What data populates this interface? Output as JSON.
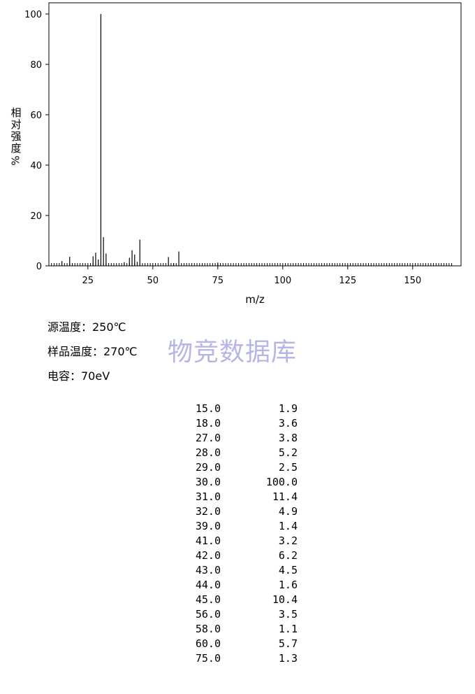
{
  "chart_data": {
    "type": "bar",
    "title": "",
    "xlabel": "m/z",
    "ylabel_chars": [
      "相",
      "对",
      "强",
      "度"
    ],
    "ylabel_unit": "%",
    "xlim": [
      10,
      165
    ],
    "ylim": [
      0,
      100
    ],
    "xticks": [
      25,
      50,
      75,
      100,
      125,
      150
    ],
    "yticks": [
      0,
      20,
      40,
      60,
      80,
      100
    ],
    "grid": false,
    "peaks": [
      {
        "mz": 15.0,
        "abundance": 1.9
      },
      {
        "mz": 18.0,
        "abundance": 3.6
      },
      {
        "mz": 27.0,
        "abundance": 3.8
      },
      {
        "mz": 28.0,
        "abundance": 5.2
      },
      {
        "mz": 29.0,
        "abundance": 2.5
      },
      {
        "mz": 30.0,
        "abundance": 100.0
      },
      {
        "mz": 31.0,
        "abundance": 11.4
      },
      {
        "mz": 32.0,
        "abundance": 4.9
      },
      {
        "mz": 39.0,
        "abundance": 1.4
      },
      {
        "mz": 41.0,
        "abundance": 3.2
      },
      {
        "mz": 42.0,
        "abundance": 6.2
      },
      {
        "mz": 43.0,
        "abundance": 4.5
      },
      {
        "mz": 44.0,
        "abundance": 1.6
      },
      {
        "mz": 45.0,
        "abundance": 10.4
      },
      {
        "mz": 56.0,
        "abundance": 3.5
      },
      {
        "mz": 58.0,
        "abundance": 1.1
      },
      {
        "mz": 60.0,
        "abundance": 5.7
      },
      {
        "mz": 75.0,
        "abundance": 1.3
      }
    ]
  },
  "conditions": {
    "source_temp": "源温度：250℃",
    "sample_temp": "样品温度：270℃",
    "energy": "电容：70eV"
  },
  "watermark": "物竞数据库",
  "table_rows": [
    {
      "mz": "15.0",
      "abundance": "1.9"
    },
    {
      "mz": "18.0",
      "abundance": "3.6"
    },
    {
      "mz": "27.0",
      "abundance": "3.8"
    },
    {
      "mz": "28.0",
      "abundance": "5.2"
    },
    {
      "mz": "29.0",
      "abundance": "2.5"
    },
    {
      "mz": "30.0",
      "abundance": "100.0"
    },
    {
      "mz": "31.0",
      "abundance": "11.4"
    },
    {
      "mz": "32.0",
      "abundance": "4.9"
    },
    {
      "mz": "39.0",
      "abundance": "1.4"
    },
    {
      "mz": "41.0",
      "abundance": "3.2"
    },
    {
      "mz": "42.0",
      "abundance": "6.2"
    },
    {
      "mz": "43.0",
      "abundance": "4.5"
    },
    {
      "mz": "44.0",
      "abundance": "1.6"
    },
    {
      "mz": "45.0",
      "abundance": "10.4"
    },
    {
      "mz": "56.0",
      "abundance": "3.5"
    },
    {
      "mz": "58.0",
      "abundance": "1.1"
    },
    {
      "mz": "60.0",
      "abundance": "5.7"
    },
    {
      "mz": "75.0",
      "abundance": "1.3"
    }
  ]
}
